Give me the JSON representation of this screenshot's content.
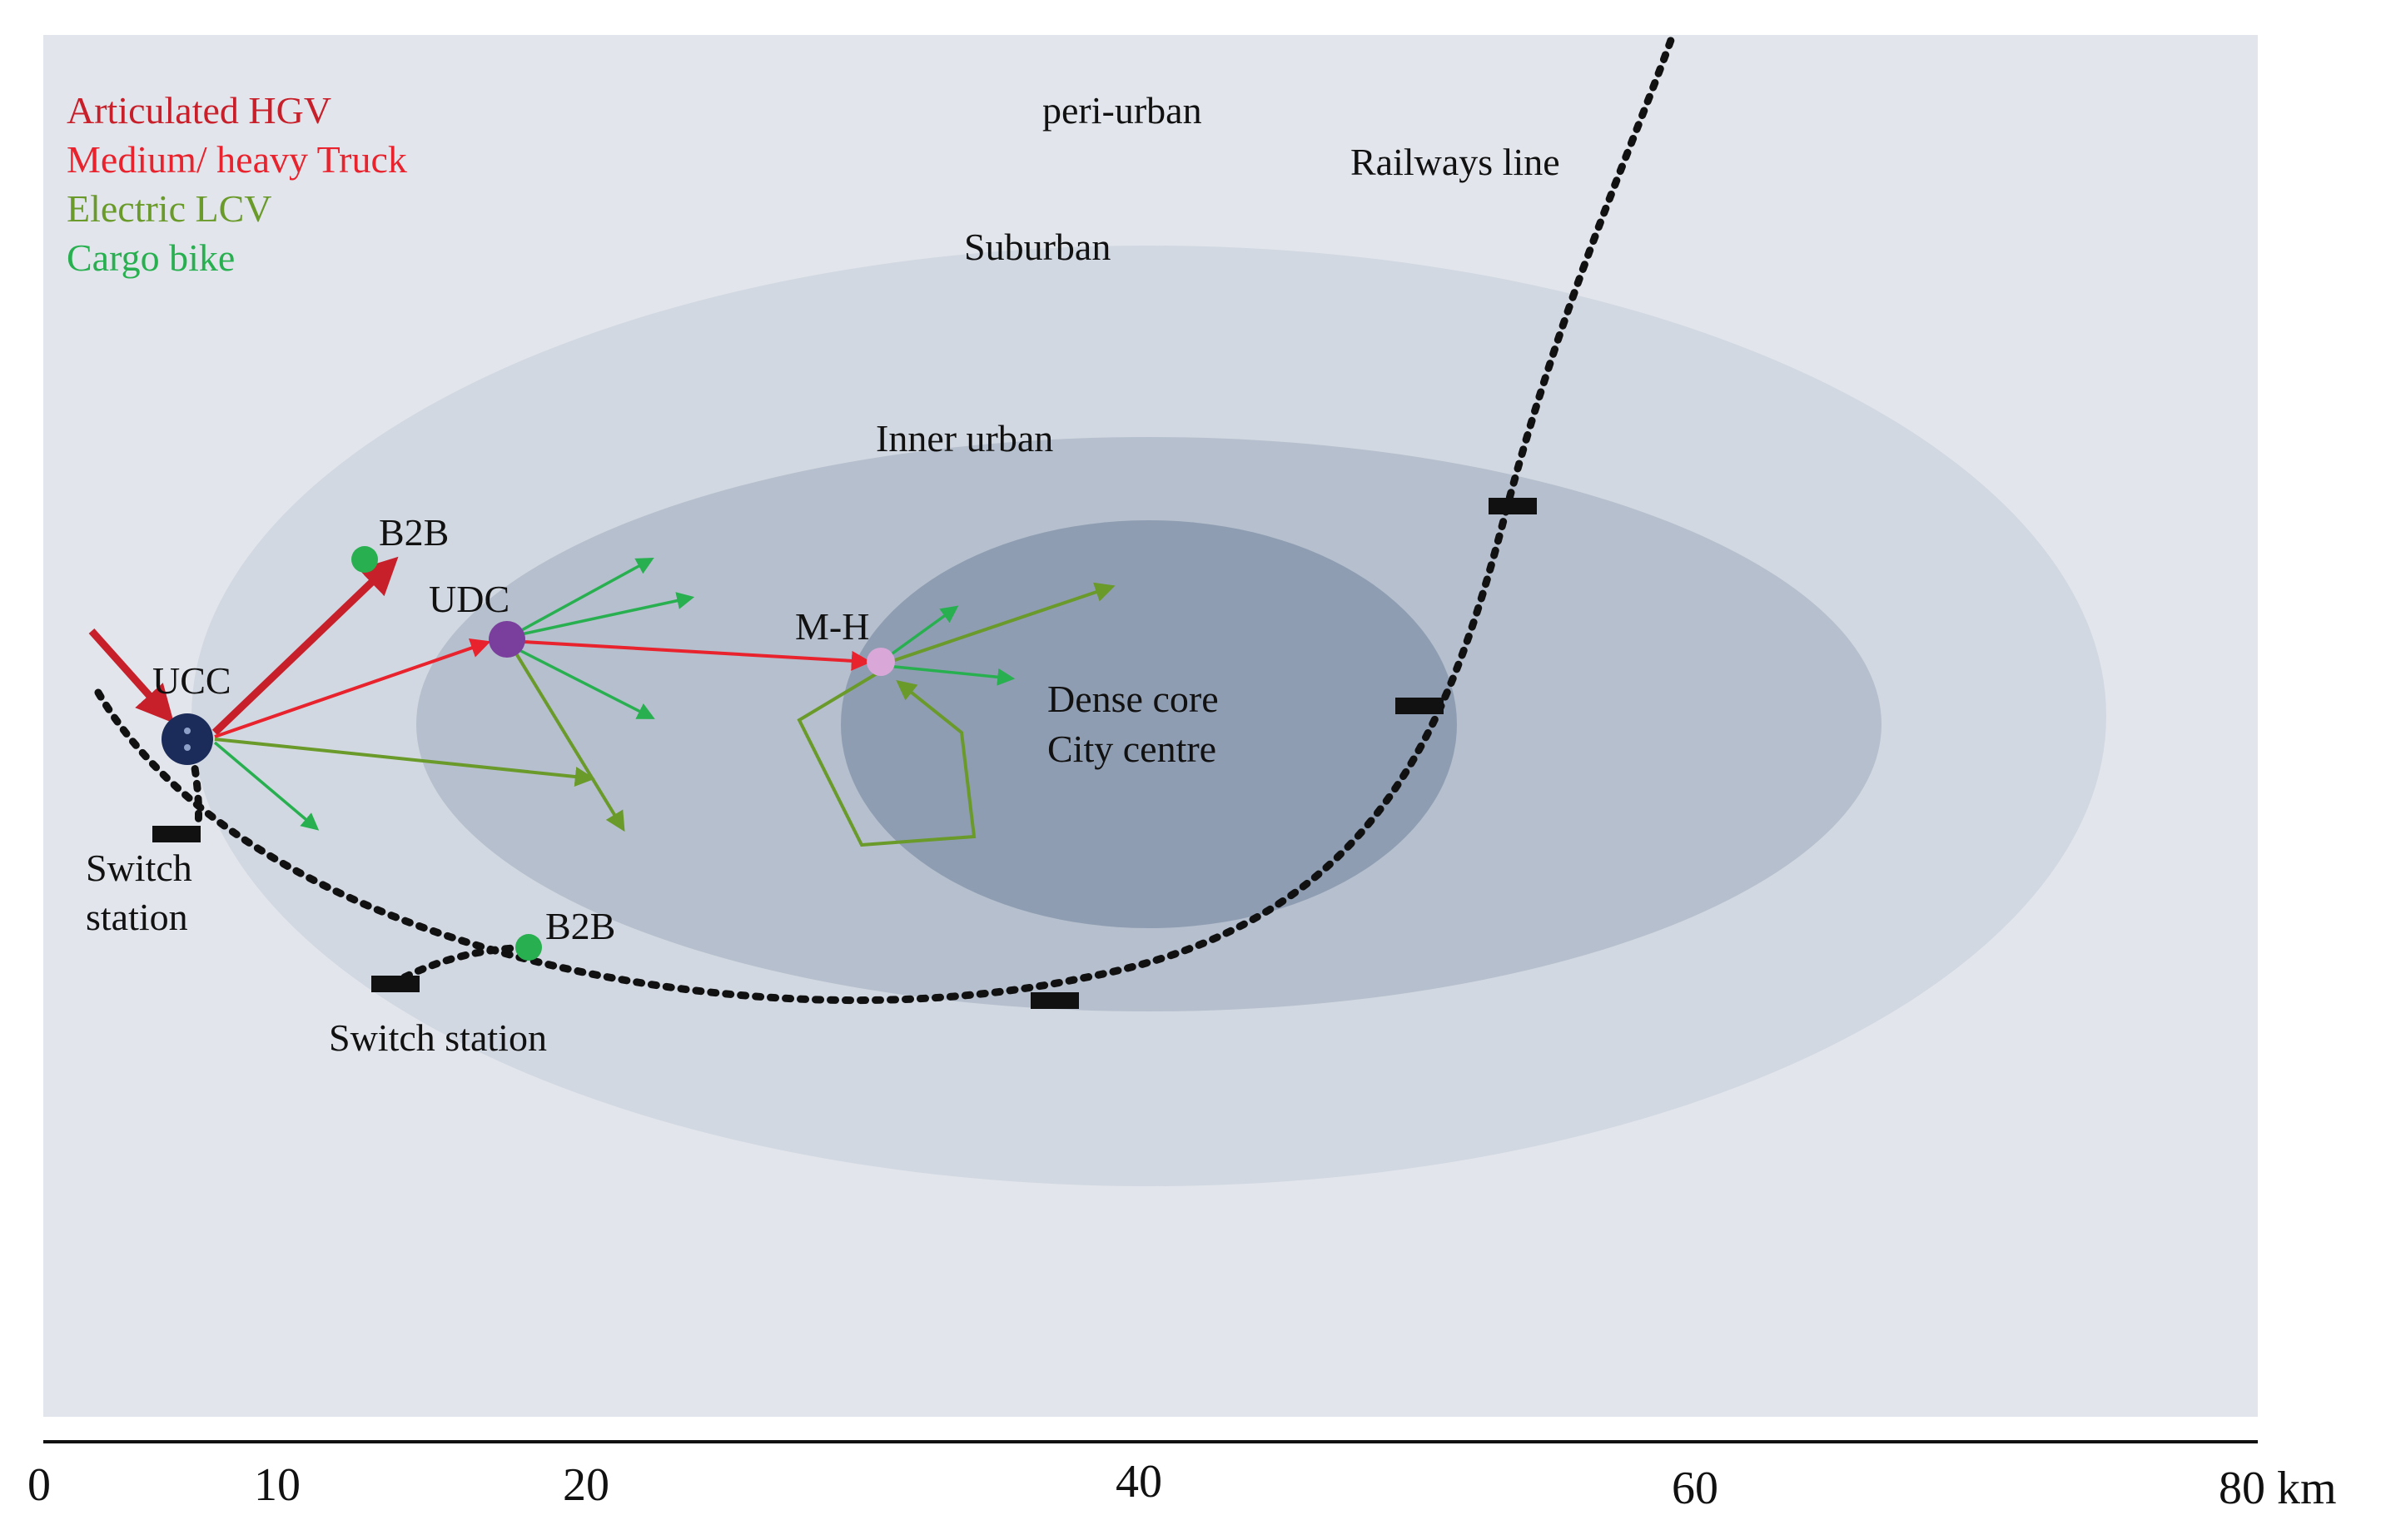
{
  "legend": [
    {
      "label": "Articulated HGV",
      "color": "#c8202a"
    },
    {
      "label": "Medium/ heavy Truck",
      "color": "#e8232d"
    },
    {
      "label": "Electric LCV",
      "color": "#6a9a2a"
    },
    {
      "label": "Cargo bike",
      "color": "#28b050"
    }
  ],
  "zones": {
    "peri_urban": "peri-urban",
    "suburban": "Suburban",
    "inner_urban": "Inner urban",
    "core_line1": "Dense core",
    "core_line2": "City centre"
  },
  "zone_colors": {
    "peri_urban": "#e2e6ec",
    "suburban": "#d2d8e1",
    "inner_urban": "#b5bfcd",
    "core": "#8f9db2"
  },
  "railway_label": "Railways line",
  "nodes": {
    "ucc": {
      "label": "UCC",
      "color": "#1c2c5a"
    },
    "udc": {
      "label": "UDC",
      "color": "#7a3f9c"
    },
    "mh": {
      "label": "M-H",
      "color": "#d9a8d8"
    },
    "b2b_top": {
      "label": "B2B",
      "color": "#28b050"
    },
    "b2b_bottom": {
      "label": "B2B",
      "color": "#28b050"
    }
  },
  "switch_station_left": {
    "line1": "Switch",
    "line2": "station"
  },
  "switch_station_bottom": "Switch station",
  "axis": {
    "ticks": [
      "0",
      "10",
      "20",
      "40",
      "60",
      "80 km"
    ]
  }
}
